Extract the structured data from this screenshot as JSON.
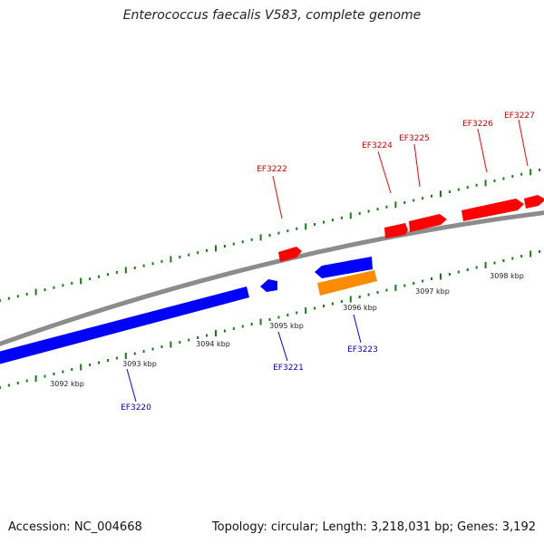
{
  "title": "Enterococcus faecalis V583, complete genome",
  "footer": {
    "accession": "Accession: NC_004668",
    "summary": "Topology: circular; Length: 3,218,031 bp; Genes: 3,192"
  },
  "colors": {
    "backbone": "#8c8c8c",
    "tick": "#1a7a1a",
    "forward_gene": "#ff0000",
    "reverse_gene": "#0000ff",
    "other_gene": "#ff8c00",
    "forward_label": "#cc0000",
    "reverse_label": "#0000bb"
  },
  "chart_data": {
    "type": "genome-map",
    "scale_unit": "kbp",
    "ticks_kbp": [
      "3092 kbp",
      "3093 kbp",
      "3094 kbp",
      "3095 kbp",
      "3096 kbp",
      "3097 kbp",
      "3098 kbp"
    ],
    "genes": [
      {
        "label": "EF3220",
        "strand": "reverse"
      },
      {
        "label": "EF3221",
        "strand": "reverse"
      },
      {
        "label": "EF3222",
        "strand": "forward"
      },
      {
        "label": "EF3223",
        "strand": "reverse"
      },
      {
        "label": "EF3224",
        "strand": "forward"
      },
      {
        "label": "EF3225",
        "strand": "forward"
      },
      {
        "label": "EF3226",
        "strand": "forward"
      },
      {
        "label": "EF3227",
        "strand": "forward"
      }
    ]
  }
}
